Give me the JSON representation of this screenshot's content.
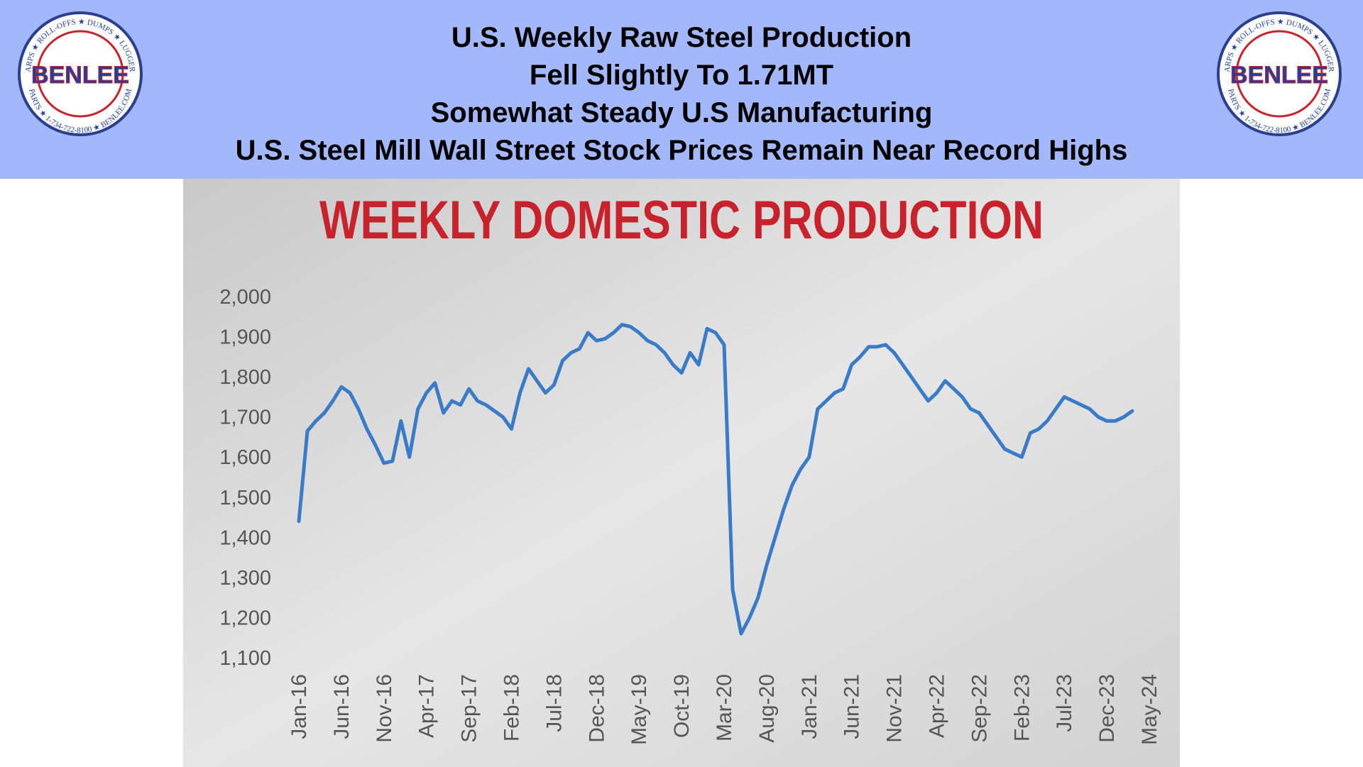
{
  "header": {
    "lines": [
      "U.S. Weekly Raw Steel Production",
      "Fell Slightly To 1.71MT",
      "Somewhat Steady U.S Manufacturing",
      "U.S. Steel Mill Wall Street Stock Prices Remain Near Record Highs"
    ]
  },
  "logo": {
    "name": "BENLEE",
    "ring_top": "TARPS ★ ROLL-OFFS ★ DUMPS ★ LUGGERS",
    "ring_bottom": "PARTS ★ 1-734-722-8100 ★ BENLEE.COM"
  },
  "chart_data": {
    "type": "line",
    "title": "WEEKLY DOMESTIC PRODUCTION",
    "categories": [
      "Jan-16",
      null,
      null,
      null,
      null,
      "Jun-16",
      null,
      null,
      null,
      null,
      "Nov-16",
      null,
      null,
      null,
      null,
      "Apr-17",
      null,
      null,
      null,
      null,
      "Sep-17",
      null,
      null,
      null,
      null,
      "Feb-18",
      null,
      null,
      null,
      null,
      "Jul-18",
      null,
      null,
      null,
      null,
      "Dec-18",
      null,
      null,
      null,
      null,
      "May-19",
      null,
      null,
      null,
      null,
      "Oct-19",
      null,
      null,
      null,
      null,
      "Mar-20",
      null,
      null,
      null,
      null,
      "Aug-20",
      null,
      null,
      null,
      null,
      "Jan-21",
      null,
      null,
      null,
      null,
      "Jun-21",
      null,
      null,
      null,
      null,
      "Nov-21",
      null,
      null,
      null,
      null,
      "Apr-22",
      null,
      null,
      null,
      null,
      "Sep-22",
      null,
      null,
      null,
      null,
      "Feb-23",
      null,
      null,
      null,
      null,
      "Jul-23",
      null,
      null,
      null,
      null,
      "Dec-23",
      null,
      null,
      null,
      null,
      "May-24"
    ],
    "series": [
      {
        "color": "#3a7bc8",
        "values": [
          1440,
          1665,
          1690,
          1710,
          1740,
          1775,
          1760,
          1720,
          1670,
          1630,
          1585,
          1590,
          1690,
          1600,
          1720,
          1760,
          1785,
          1710,
          1740,
          1730,
          1770,
          1740,
          1730,
          1715,
          1700,
          1670,
          1760,
          1820,
          1790,
          1760,
          1780,
          1840,
          1860,
          1870,
          1910,
          1890,
          1895,
          1910,
          1930,
          1925,
          1910,
          1890,
          1880,
          1860,
          1830,
          1810,
          1860,
          1830,
          1920,
          1910,
          1880,
          1270,
          1160,
          1200,
          1250,
          1330,
          1400,
          1470,
          1530,
          1570,
          1600,
          1720,
          1740,
          1760,
          1770,
          1830,
          1850,
          1875,
          1875,
          1880,
          1860,
          1830,
          1800,
          1770,
          1740,
          1760,
          1790,
          1770,
          1750,
          1720,
          1710,
          1680,
          1650,
          1620,
          1610,
          1600,
          1660,
          1670,
          1690,
          1720,
          1750,
          1740,
          1730,
          1720,
          1700,
          1690,
          1690,
          1700,
          1715,
          null,
          null
        ]
      }
    ],
    "ylim": [
      1100,
      2000
    ],
    "yticks": [
      {
        "value": 1100,
        "label": "1,100"
      },
      {
        "value": 1200,
        "label": "1,200"
      },
      {
        "value": 1300,
        "label": "1,300"
      },
      {
        "value": 1400,
        "label": "1,400"
      },
      {
        "value": 1500,
        "label": "1,500"
      },
      {
        "value": 1600,
        "label": "1,600"
      },
      {
        "value": 1700,
        "label": "1,700"
      },
      {
        "value": 1800,
        "label": "1,800"
      },
      {
        "value": 1900,
        "label": "1,900"
      },
      {
        "value": 2000,
        "label": "2,000"
      }
    ],
    "grid": false
  }
}
